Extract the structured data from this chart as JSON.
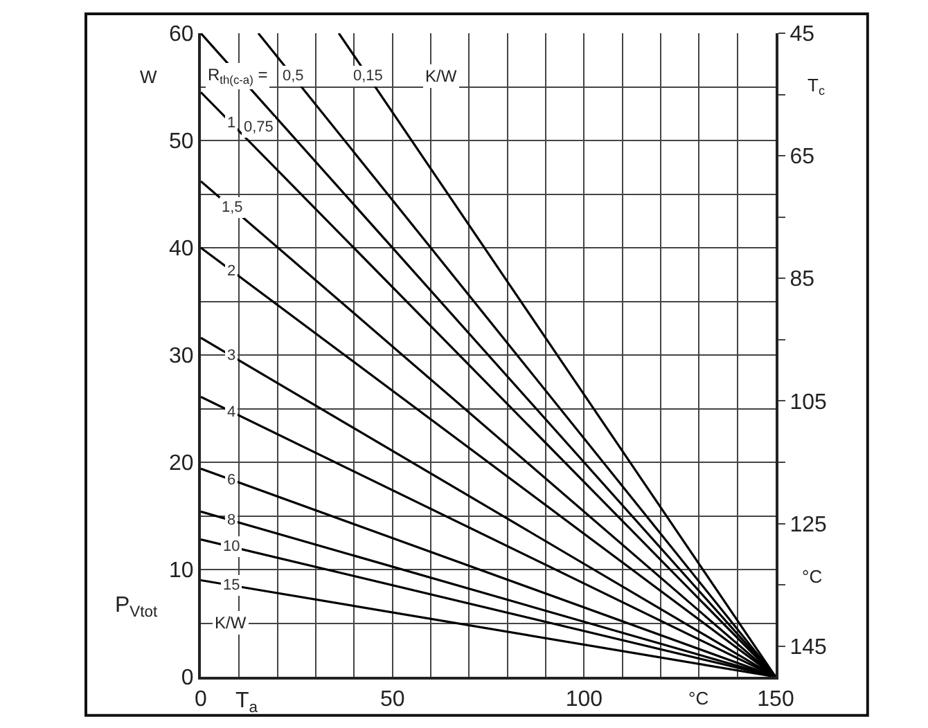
{
  "chart_data": {
    "type": "line",
    "xlabel": "T$_{a}$",
    "ylabel": "P$_{Vtot}$",
    "y2label": "T$_{c}$",
    "annotations": [
      "W",
      "°C",
      "°C",
      "R$_{th(c-a)}$ =",
      "K/W",
      "K/W"
    ],
    "xlim": [
      0,
      150
    ],
    "xticks": [
      0,
      {
        "value": 10,
        "label": null
      },
      {
        "value": 20,
        "label": null
      },
      {
        "value": 30,
        "label": null
      },
      {
        "value": 40,
        "label": null
      },
      50,
      {
        "value": 60,
        "label": null
      },
      {
        "value": 70,
        "label": null
      },
      {
        "value": 80,
        "label": null
      },
      {
        "value": 90,
        "label": null
      },
      100,
      {
        "value": 110,
        "label": null
      },
      {
        "value": 120,
        "label": null
      },
      {
        "value": 130,
        "label": null
      },
      {
        "value": 140,
        "label": null
      },
      150
    ],
    "ylim": [
      0,
      60
    ],
    "yticks": [
      0,
      {
        "value": 5,
        "label": null
      },
      10,
      {
        "value": 15,
        "label": null
      },
      20,
      {
        "value": 25,
        "label": null
      },
      30,
      {
        "value": 35,
        "label": null
      },
      40,
      {
        "value": 45,
        "label": null
      },
      50,
      {
        "value": 55,
        "label": null
      },
      60
    ],
    "y2lim": [
      150,
      45
    ],
    "y2ticks": [
      45,
      {
        "value": 55,
        "label": null
      },
      65,
      {
        "value": 75,
        "label": null
      },
      85,
      {
        "value": 95,
        "label": null
      },
      105,
      {
        "value": 115,
        "label": null
      },
      125,
      {
        "value": 135,
        "label": null
      },
      145
    ],
    "grid": true,
    "marker": "none",
    "line_style": "solid",
    "series": [
      {
        "name": "0,15",
        "color": "#000000",
        "x": [
          36,
          150
        ],
        "values": [
          60,
          0
        ]
      },
      {
        "name": "0,5",
        "color": "#000000",
        "x": [
          15,
          150
        ],
        "values": [
          60,
          0
        ]
      },
      {
        "name": "0,75",
        "color": "#000000",
        "x": [
          0,
          150
        ],
        "values": [
          60,
          0
        ]
      },
      {
        "name": "1",
        "color": "#000000",
        "x": [
          0,
          150
        ],
        "values": [
          54.5,
          0
        ]
      },
      {
        "name": "1,5",
        "color": "#000000",
        "x": [
          0,
          150
        ],
        "values": [
          46.2,
          0
        ]
      },
      {
        "name": "2",
        "color": "#000000",
        "x": [
          0,
          150
        ],
        "values": [
          40,
          0
        ]
      },
      {
        "name": "3",
        "color": "#000000",
        "x": [
          0,
          150
        ],
        "values": [
          31.6,
          0
        ]
      },
      {
        "name": "4",
        "color": "#000000",
        "x": [
          0,
          150
        ],
        "values": [
          26.1,
          0
        ]
      },
      {
        "name": "6",
        "color": "#000000",
        "x": [
          0,
          150
        ],
        "values": [
          19.4,
          0
        ]
      },
      {
        "name": "8",
        "color": "#000000",
        "x": [
          0,
          150
        ],
        "values": [
          15.4,
          0
        ]
      },
      {
        "name": "10",
        "color": "#000000",
        "x": [
          0,
          150
        ],
        "values": [
          12.8,
          0
        ]
      },
      {
        "name": "15",
        "color": "#000000",
        "x": [
          0,
          150
        ],
        "values": [
          9,
          0
        ]
      }
    ]
  }
}
